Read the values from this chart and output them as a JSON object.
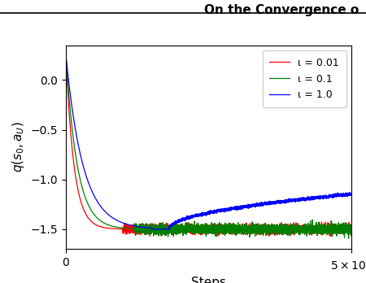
{
  "title": "On the Convergence o",
  "xlabel": "Steps",
  "ylabel": "$q(s_0, a_U)$",
  "xlim": [
    0,
    50000
  ],
  "ylim": [
    -1.7,
    0.35
  ],
  "yticks": [
    0.0,
    -0.5,
    -1.0,
    -1.5
  ],
  "legend_labels": [
    "ι = 0.01",
    "ι = 0.1",
    "ι = 1.0"
  ],
  "line_colors": [
    "blue",
    "green",
    "red"
  ],
  "n_steps": 5001,
  "converged_value": -1.5,
  "start_value": 0.25,
  "noise_green": 0.025,
  "noise_red": 0.022
}
